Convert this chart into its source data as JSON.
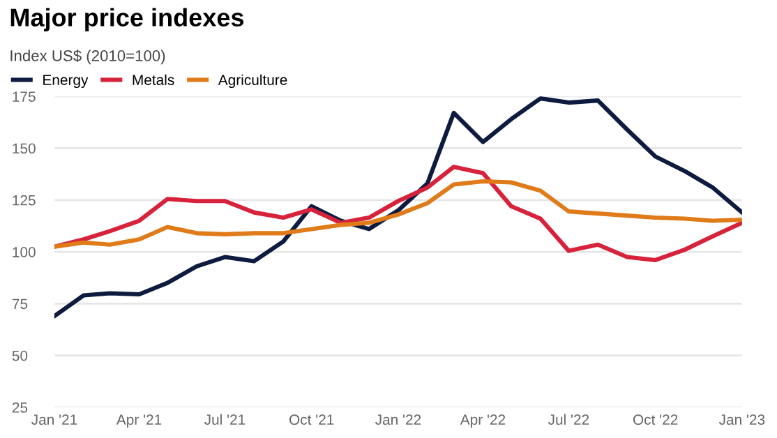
{
  "chart_data": {
    "type": "line",
    "title": "Major price indexes",
    "subtitle": "Index US$ (2010=100)",
    "x": [
      "2021-01",
      "2021-02",
      "2021-03",
      "2021-04",
      "2021-05",
      "2021-06",
      "2021-07",
      "2021-08",
      "2021-09",
      "2021-10",
      "2021-11",
      "2021-12",
      "2022-01",
      "2022-02",
      "2022-03",
      "2022-04",
      "2022-05",
      "2022-06",
      "2022-07",
      "2022-08",
      "2022-09",
      "2022-10",
      "2022-11",
      "2022-12",
      "2023-01"
    ],
    "series": [
      {
        "name": "Energy",
        "color": "#0d1b3e",
        "values": [
          69,
          79,
          80,
          79.5,
          85,
          93,
          97.5,
          95.5,
          105,
          122,
          115,
          111,
          120,
          133,
          167,
          153,
          164,
          174,
          172,
          173,
          159,
          146,
          139,
          131,
          119
        ]
      },
      {
        "name": "Metals",
        "color": "#d6223a",
        "values": [
          102.5,
          106,
          110,
          115,
          125.5,
          124.5,
          124.5,
          119,
          116.5,
          120.5,
          114,
          116.5,
          124.5,
          131,
          141,
          138,
          122,
          116,
          100.5,
          103.5,
          97.5,
          96,
          101,
          107.5,
          114
        ]
      },
      {
        "name": "Agriculture",
        "color": "#e07b1a",
        "values": [
          102.5,
          104.5,
          103.5,
          106,
          112,
          109,
          108.5,
          109,
          109,
          111,
          113,
          114,
          118,
          123.5,
          132.5,
          134,
          133.5,
          129.5,
          119.5,
          118.5,
          117.5,
          116.5,
          116,
          115,
          115.5
        ]
      }
    ],
    "xlim": [
      "2021-01",
      "2023-01"
    ],
    "xticks": [
      {
        "value": "2021-01",
        "label": "Jan '21"
      },
      {
        "value": "2021-04",
        "label": "Apr '21"
      },
      {
        "value": "2021-07",
        "label": "Jul '21"
      },
      {
        "value": "2021-10",
        "label": "Oct '21"
      },
      {
        "value": "2022-01",
        "label": "Jan '22"
      },
      {
        "value": "2022-04",
        "label": "Apr '22"
      },
      {
        "value": "2022-07",
        "label": "Jul '22"
      },
      {
        "value": "2022-10",
        "label": "Oct '22"
      },
      {
        "value": "2023-01",
        "label": "Jan '23"
      }
    ],
    "ylim": [
      25,
      175
    ],
    "yticks": [
      25,
      50,
      75,
      100,
      125,
      150,
      175
    ],
    "grid": "y",
    "legend": "top left",
    "marker": "none",
    "line_style": "solid"
  }
}
